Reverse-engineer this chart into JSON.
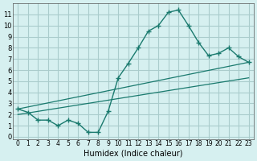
{
  "xlabel": "Humidex (Indice chaleur)",
  "ylabel": "",
  "bg_color": "#d6f0f0",
  "grid_color": "#aacccc",
  "line_color": "#1a7a6e",
  "xlim": [
    -0.5,
    23.5
  ],
  "ylim": [
    -0.2,
    12
  ],
  "x_ticks": [
    0,
    1,
    2,
    3,
    4,
    5,
    6,
    7,
    8,
    9,
    10,
    11,
    12,
    13,
    14,
    15,
    16,
    17,
    18,
    19,
    20,
    21,
    22,
    23
  ],
  "y_ticks": [
    0,
    1,
    2,
    3,
    4,
    5,
    6,
    7,
    8,
    9,
    10,
    11
  ],
  "line1_x": [
    0,
    1,
    2,
    3,
    4,
    5,
    6,
    7,
    8,
    9,
    10,
    11,
    12,
    13,
    14,
    15,
    16,
    17,
    18,
    19,
    20,
    21,
    22,
    23
  ],
  "line1_y": [
    2.5,
    2.2,
    1.5,
    1.5,
    1.0,
    1.5,
    1.2,
    0.4,
    0.4,
    2.3,
    5.3,
    6.6,
    8.0,
    9.5,
    10.0,
    11.2,
    11.4,
    10.0,
    8.5,
    7.3,
    7.5,
    8.0,
    7.2,
    6.7
  ],
  "line2_x": [
    0,
    23
  ],
  "line2_y": [
    2.5,
    6.7
  ],
  "line3_x": [
    0,
    23
  ],
  "line3_y": [
    2.0,
    5.3
  ]
}
